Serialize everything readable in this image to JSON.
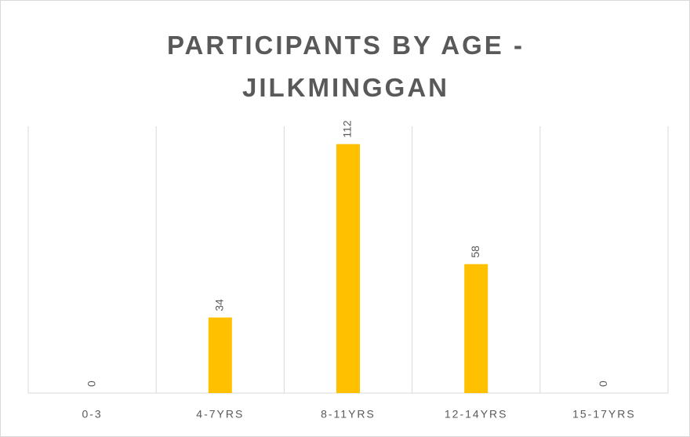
{
  "chart_data": {
    "type": "bar",
    "title": "PARTICIPANTS BY AGE - JILKMINGGAN",
    "categories": [
      "0-3",
      "4-7YRS",
      "8-11YRS",
      "12-14YRS",
      "15-17YRS"
    ],
    "values": [
      0,
      34,
      112,
      58,
      0
    ],
    "color": "#ffc000",
    "ylim": [
      0,
      120
    ]
  }
}
